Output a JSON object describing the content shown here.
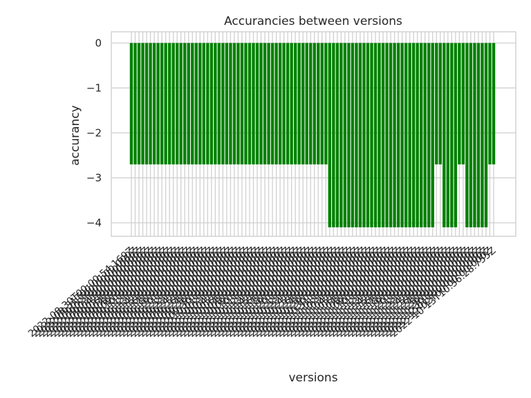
{
  "chart_data": {
    "type": "bar",
    "title": "Accurancies between versions",
    "xlabel": "versions",
    "ylabel": "accurancy",
    "ylim": [
      -4.3,
      0.25
    ],
    "yticks": [
      "0",
      "−1",
      "−2",
      "−3",
      "−4"
    ],
    "ytick_values": [
      0,
      -1,
      -2,
      -3,
      -4
    ],
    "grid": true,
    "bar_color": "#008000",
    "categories": [
      "2022-08-30T00:00:54.169Z",
      "2022-08-31T00:00:00.000Z",
      "2022-09-01T00:00:00.000Z",
      "2022-09-02T00:00:00.000Z",
      "2022-09-03T00:00:00.000Z",
      "2022-09-04T00:00:00.000Z",
      "2022-09-05T00:00:00.000Z",
      "2022-09-06T00:00:00.000Z",
      "2022-09-07T00:00:00.000Z",
      "2022-09-08T00:00:00.000Z",
      "2022-09-09T00:00:00.000Z",
      "2022-09-10T00:00:00.000Z",
      "2022-09-11T00:00:00.000Z",
      "2022-09-12T00:00:00.000Z",
      "2022-09-13T00:00:00.000Z",
      "2022-09-14T00:00:00.000Z",
      "2022-09-15T00:00:00.000Z",
      "2022-09-16T00:00:00.000Z",
      "2022-09-17T00:00:00.000Z",
      "2022-09-18T00:00:00.000Z",
      "2022-09-19T00:00:00.000Z",
      "2022-09-20T00:00:00.000Z",
      "2022-09-21T00:00:00.000Z",
      "2022-09-22T00:00:00.000Z",
      "2022-09-23T00:00:00.000Z",
      "2022-09-24T00:00:00.000Z",
      "2022-09-25T00:00:00.000Z",
      "2022-09-26T00:00:00.000Z",
      "2022-09-27T00:00:00.000Z",
      "2022-09-28T00:00:00.000Z",
      "2022-09-29T00:00:00.000Z",
      "2022-09-30T00:00:00.000Z",
      "2022-10-01T00:00:00.000Z",
      "2022-10-02T00:00:00.000Z",
      "2022-10-03T00:00:00.000Z",
      "2022-10-04T00:00:00.000Z",
      "2022-10-05T00:00:00.000Z",
      "2022-10-06T00:00:00.000Z",
      "2022-10-07T00:00:00.000Z",
      "2022-10-08T00:00:00.000Z",
      "2022-10-09T00:00:00.000Z",
      "2022-10-10T00:00:00.000Z",
      "2022-10-11T00:00:00.000Z",
      "2022-10-12T00:00:00.000Z",
      "2022-10-13T00:00:00.000Z",
      "2022-10-14T00:00:00.000Z",
      "2022-10-15T00:00:00.000Z",
      "2022-10-16T00:00:00.000Z",
      "2022-10-17T00:00:00.000Z",
      "2022-10-18T00:00:00.000Z",
      "2022-10-19T00:00:00.000Z",
      "2022-10-20T00:00:00.000Z",
      "2022-10-21T00:00:00.000Z",
      "2022-10-22T00:00:00.000Z",
      "2022-10-23T00:00:00.000Z",
      "2022-10-24T00:00:00.000Z",
      "2022-10-25T00:00:00.000Z",
      "2022-10-26T00:00:00.000Z",
      "2022-10-27T00:00:00.000Z",
      "2022-10-28T00:00:00.000Z",
      "2022-10-29T00:00:00.000Z",
      "2022-10-30T00:00:00.000Z",
      "2022-10-31T00:00:00.000Z",
      "2022-11-01T00:00:00.000Z",
      "2022-11-02T00:00:00.000Z",
      "2022-11-03T00:00:00.000Z",
      "2022-11-04T00:00:00.000Z",
      "2022-11-05T00:00:00.000Z",
      "2022-11-06T00:00:00.000Z",
      "2022-11-07T00:00:00.000Z",
      "2022-11-08T00:00:00.000Z",
      "2022-11-09T00:00:00.000Z",
      "2022-11-10T00:00:00.000Z",
      "2022-11-11T00:00:00.000Z",
      "2022-11-12T00:00:00.000Z",
      "2022-11-13T00:00:00.000Z",
      "2022-11-14T00:00:00.000Z",
      "2022-11-15T00:00:00.000Z",
      "2022-11-16T00:00:00.000Z",
      "2022-11-17T00:00:00.000Z",
      "2022-11-18T00:00:00.000Z",
      "2022-11-19T00:00:00.000Z",
      "2022-11-20T00:00:00.000Z",
      "2022-11-21T00:00:00.000Z",
      "2022-11-22T00:00:00.000Z",
      "2022-11-23T00:00:00.000Z",
      "2022-11-24T00:00:00.000Z",
      "2022-11-25T00:00:00.000Z",
      "2022-11-26T00:00:00.000Z",
      "2022-11-27T00:00:00.000Z",
      "2022-11-28T00:00:00.000Z",
      "2022-11-29T00:00:00.000Z",
      "2022-11-30T00:00:00.000Z",
      "2022-12-01T00:00:00.000Z",
      "2022-12-02T00:00:00.000Z",
      "2022-10-13T10:36:28.755Z"
    ],
    "values": [
      -2.7,
      -2.7,
      -2.7,
      -2.7,
      -2.7,
      -2.7,
      -2.7,
      -2.7,
      -2.7,
      -2.7,
      -2.7,
      -2.7,
      -2.7,
      -2.7,
      -2.7,
      -2.7,
      -2.7,
      -2.7,
      -2.7,
      -2.7,
      -2.7,
      -2.7,
      -2.7,
      -2.7,
      -2.7,
      -2.7,
      -2.7,
      -2.7,
      -2.7,
      -2.7,
      -2.7,
      -2.7,
      -2.7,
      -2.7,
      -2.7,
      -2.7,
      -2.7,
      -2.7,
      -2.7,
      -2.7,
      -2.7,
      -2.7,
      -2.7,
      -2.7,
      -2.7,
      -2.7,
      -2.7,
      -2.7,
      -2.7,
      -2.7,
      -2.7,
      -2.7,
      -4.1,
      -4.1,
      -4.1,
      -4.1,
      -4.1,
      -4.1,
      -4.1,
      -4.1,
      -4.1,
      -4.1,
      -4.1,
      -4.1,
      -4.1,
      -4.1,
      -4.1,
      -4.1,
      -4.1,
      -4.1,
      -4.1,
      -4.1,
      -4.1,
      -4.1,
      -4.1,
      -4.1,
      -4.1,
      -4.1,
      -4.1,
      -4.1,
      -2.7,
      -2.7,
      -4.1,
      -4.1,
      -4.1,
      -4.1,
      -2.7,
      -2.7,
      -4.1,
      -4.1,
      -4.1,
      -4.1,
      -4.1,
      -4.1,
      -2.7,
      -2.7
    ]
  }
}
